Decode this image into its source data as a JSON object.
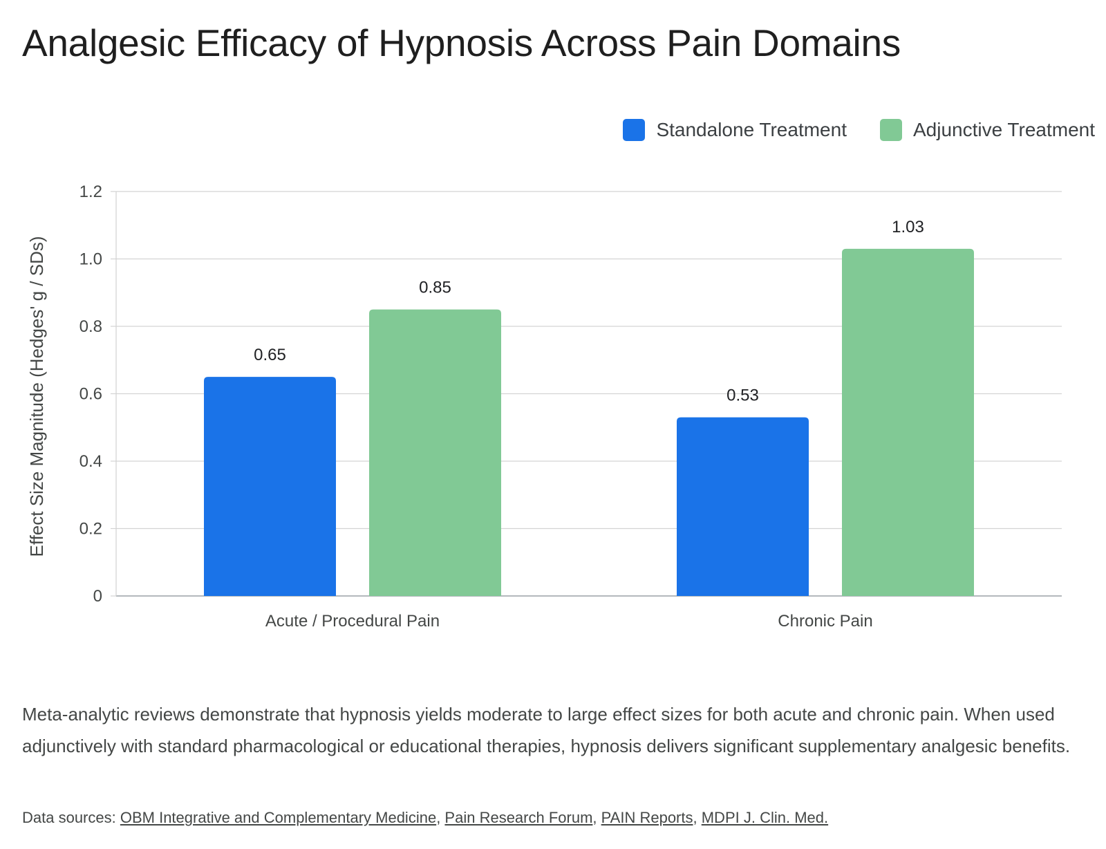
{
  "chart_data": {
    "type": "bar",
    "title": "Analgesic Efficacy of Hypnosis Across Pain Domains",
    "xlabel": "",
    "ylabel": "Effect Size Magnitude (Hedges' g / SDs)",
    "categories": [
      "Acute / Procedural Pain",
      "Chronic Pain"
    ],
    "series": [
      {
        "name": "Standalone Treatment",
        "values": [
          0.65,
          0.53
        ],
        "color": "#1a73e8"
      },
      {
        "name": "Adjunctive Treatment",
        "values": [
          0.85,
          1.03
        ],
        "color": "#81c995"
      }
    ],
    "ylim": [
      0,
      1.2
    ],
    "yticks": [
      0,
      0.2,
      0.4,
      0.6,
      0.8,
      1.0,
      1.2
    ],
    "ytick_labels": [
      "0",
      "0.2",
      "0.4",
      "0.6",
      "0.8",
      "1.0",
      "1.2"
    ],
    "data_labels": [
      [
        "0.65",
        "0.53"
      ],
      [
        "0.85",
        "1.03"
      ]
    ],
    "grid": true,
    "legend_position": "top-right"
  },
  "description": "Meta-analytic reviews demonstrate that hypnosis yields moderate to large effect sizes for both acute and chronic pain. When used adjunctively with standard pharmacological or educational therapies, hypnosis delivers significant supplementary analgesic benefits.",
  "sources": {
    "label": "Data sources:",
    "links": [
      "OBM Integrative and Complementary Medicine",
      "Pain Research Forum",
      "PAIN Reports",
      "MDPI J. Clin. Med."
    ]
  }
}
